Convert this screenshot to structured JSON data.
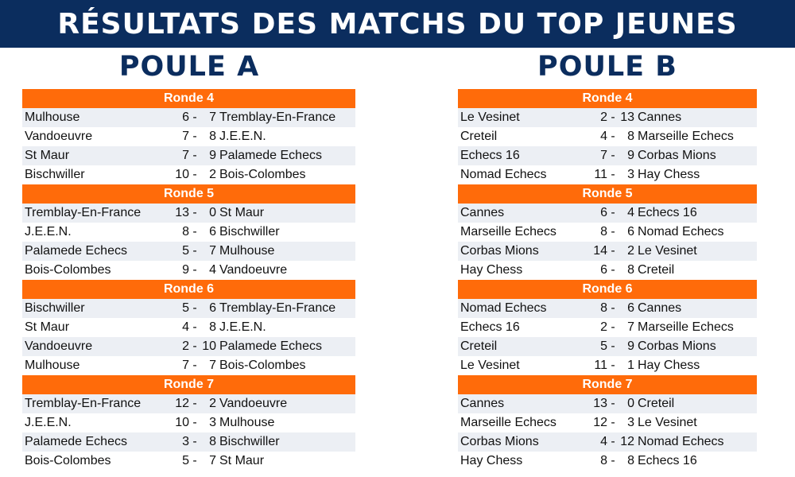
{
  "title": "RÉSULTATS DES MATCHS DU TOP JEUNES",
  "pools": [
    {
      "name": "POULE A",
      "rounds": [
        {
          "label": "Ronde 4",
          "matches": [
            {
              "home": "Mulhouse",
              "hs": "6",
              "sep": "-",
              "as": "7",
              "away": "Tremblay-En-France"
            },
            {
              "home": "Vandoeuvre",
              "hs": "7",
              "sep": "-",
              "as": "8",
              "away": "J.E.E.N."
            },
            {
              "home": "St Maur",
              "hs": "7",
              "sep": "-",
              "as": "9",
              "away": "Palamede Echecs"
            },
            {
              "home": "Bischwiller",
              "hs": "10",
              "sep": "-",
              "as": "2",
              "away": "Bois-Colombes"
            }
          ]
        },
        {
          "label": "Ronde 5",
          "matches": [
            {
              "home": "Tremblay-En-France",
              "hs": "13",
              "sep": "-",
              "as": "0",
              "away": "St Maur"
            },
            {
              "home": "J.E.E.N.",
              "hs": "8",
              "sep": "-",
              "as": "6",
              "away": "Bischwiller"
            },
            {
              "home": "Palamede Echecs",
              "hs": "5",
              "sep": "-",
              "as": "7",
              "away": "Mulhouse"
            },
            {
              "home": "Bois-Colombes",
              "hs": "9",
              "sep": "-",
              "as": "4",
              "away": "Vandoeuvre"
            }
          ]
        },
        {
          "label": "Ronde 6",
          "matches": [
            {
              "home": "Bischwiller",
              "hs": "5",
              "sep": "-",
              "as": "6",
              "away": "Tremblay-En-France"
            },
            {
              "home": "St Maur",
              "hs": "4",
              "sep": "-",
              "as": "8",
              "away": "J.E.E.N."
            },
            {
              "home": "Vandoeuvre",
              "hs": "2",
              "sep": "-",
              "as": "10",
              "away": "Palamede Echecs"
            },
            {
              "home": "Mulhouse",
              "hs": "7",
              "sep": "-",
              "as": "7",
              "away": "Bois-Colombes"
            }
          ]
        },
        {
          "label": "Ronde 7",
          "matches": [
            {
              "home": "Tremblay-En-France",
              "hs": "12",
              "sep": "-",
              "as": "2",
              "away": "Vandoeuvre"
            },
            {
              "home": "J.E.E.N.",
              "hs": "10",
              "sep": "-",
              "as": "3",
              "away": "Mulhouse"
            },
            {
              "home": "Palamede Echecs",
              "hs": "3",
              "sep": "-",
              "as": "8",
              "away": "Bischwiller"
            },
            {
              "home": "Bois-Colombes",
              "hs": "5",
              "sep": "-",
              "as": "7",
              "away": "St Maur"
            }
          ]
        }
      ]
    },
    {
      "name": "POULE B",
      "rounds": [
        {
          "label": "Ronde 4",
          "matches": [
            {
              "home": "Le Vesinet",
              "hs": "2",
              "sep": "-",
              "as": "13",
              "away": "Cannes"
            },
            {
              "home": "Creteil",
              "hs": "4",
              "sep": "-",
              "as": "8",
              "away": "Marseille Echecs"
            },
            {
              "home": "Echecs 16",
              "hs": "7",
              "sep": "-",
              "as": "9",
              "away": "Corbas Mions"
            },
            {
              "home": "Nomad Echecs",
              "hs": "11",
              "sep": "-",
              "as": "3",
              "away": "Hay Chess"
            }
          ]
        },
        {
          "label": "Ronde 5",
          "matches": [
            {
              "home": "Cannes",
              "hs": "6",
              "sep": "-",
              "as": "4",
              "away": "Echecs 16"
            },
            {
              "home": "Marseille Echecs",
              "hs": "8",
              "sep": "-",
              "as": "6",
              "away": "Nomad Echecs"
            },
            {
              "home": "Corbas Mions",
              "hs": "14",
              "sep": "-",
              "as": "2",
              "away": "Le Vesinet"
            },
            {
              "home": "Hay Chess",
              "hs": "6",
              "sep": "-",
              "as": "8",
              "away": "Creteil"
            }
          ]
        },
        {
          "label": "Ronde 6",
          "matches": [
            {
              "home": "Nomad Echecs",
              "hs": "8",
              "sep": "-",
              "as": "6",
              "away": "Cannes"
            },
            {
              "home": "Echecs 16",
              "hs": "2",
              "sep": "-",
              "as": "7",
              "away": "Marseille Echecs"
            },
            {
              "home": "Creteil",
              "hs": "5",
              "sep": "-",
              "as": "9",
              "away": "Corbas Mions"
            },
            {
              "home": "Le Vesinet",
              "hs": "11",
              "sep": "-",
              "as": "1",
              "away": "Hay Chess"
            }
          ]
        },
        {
          "label": "Ronde 7",
          "matches": [
            {
              "home": "Cannes",
              "hs": "13",
              "sep": "-",
              "as": "0",
              "away": "Creteil"
            },
            {
              "home": "Marseille Echecs",
              "hs": "12",
              "sep": "-",
              "as": "3",
              "away": "Le Vesinet"
            },
            {
              "home": "Corbas Mions",
              "hs": "4",
              "sep": "-",
              "as": "12",
              "away": "Nomad Echecs"
            },
            {
              "home": "Hay Chess",
              "hs": "8",
              "sep": "-",
              "as": "8",
              "away": "Echecs 16"
            }
          ]
        }
      ]
    }
  ]
}
